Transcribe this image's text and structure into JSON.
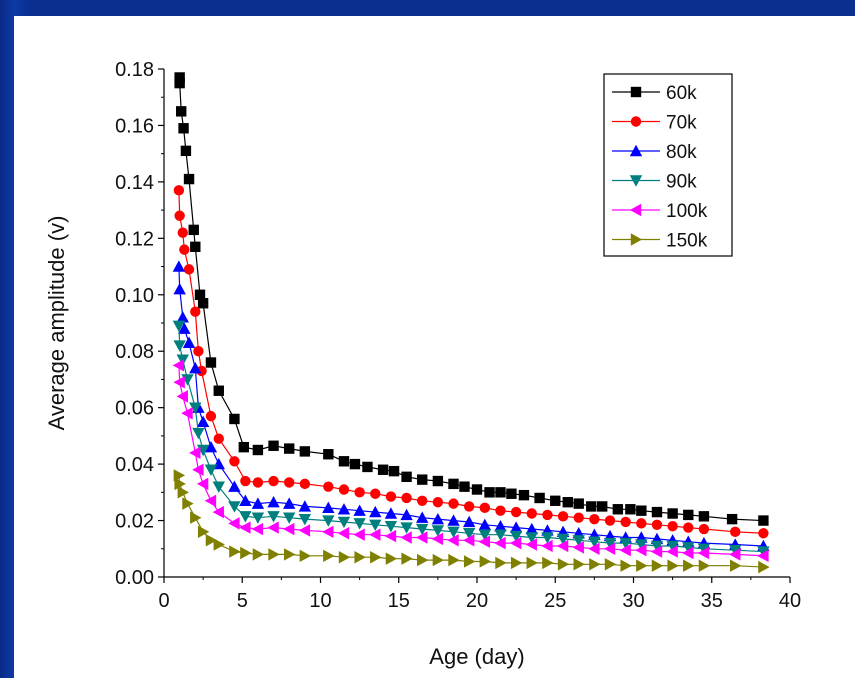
{
  "chart_data": {
    "type": "line",
    "xlabel": "Age (day)",
    "ylabel": "Average amplitude (v)",
    "xlim": [
      0,
      40
    ],
    "ylim": [
      0,
      0.18
    ],
    "xticks": [
      0,
      5,
      10,
      15,
      20,
      25,
      30,
      35,
      40
    ],
    "yticks": [
      0.0,
      0.02,
      0.04,
      0.06,
      0.08,
      0.1,
      0.12,
      0.14,
      0.16,
      0.18
    ],
    "grid": false,
    "legend_position": "top-right",
    "series": [
      {
        "name": "60k",
        "color": "#000000",
        "marker": "square",
        "points": [
          [
            1,
            0.177
          ],
          [
            1.0,
            0.175
          ],
          [
            1.1,
            0.165
          ],
          [
            1.25,
            0.159
          ],
          [
            1.4,
            0.151
          ],
          [
            1.6,
            0.141
          ],
          [
            1.9,
            0.123
          ],
          [
            2.0,
            0.117
          ],
          [
            2.3,
            0.1
          ],
          [
            2.5,
            0.097
          ],
          [
            3.0,
            0.076
          ],
          [
            3.5,
            0.066
          ],
          [
            4.5,
            0.056
          ],
          [
            5.1,
            0.046
          ],
          [
            6.0,
            0.045
          ],
          [
            7.0,
            0.0465
          ],
          [
            8.0,
            0.0455
          ],
          [
            9.0,
            0.0445
          ],
          [
            10.5,
            0.0435
          ],
          [
            11.5,
            0.041
          ],
          [
            12.2,
            0.04
          ],
          [
            13.0,
            0.039
          ],
          [
            14.0,
            0.038
          ],
          [
            14.7,
            0.0375
          ],
          [
            15.5,
            0.0355
          ],
          [
            16.5,
            0.0345
          ],
          [
            17.5,
            0.034
          ],
          [
            18.5,
            0.033
          ],
          [
            19.2,
            0.032
          ],
          [
            20.0,
            0.031
          ],
          [
            20.8,
            0.03
          ],
          [
            21.5,
            0.03
          ],
          [
            22.2,
            0.0295
          ],
          [
            23.0,
            0.029
          ],
          [
            24.0,
            0.028
          ],
          [
            25.0,
            0.027
          ],
          [
            25.8,
            0.0265
          ],
          [
            26.5,
            0.026
          ],
          [
            27.3,
            0.025
          ],
          [
            28.0,
            0.025
          ],
          [
            29.0,
            0.024
          ],
          [
            29.8,
            0.024
          ],
          [
            30.5,
            0.0235
          ],
          [
            31.5,
            0.023
          ],
          [
            32.5,
            0.0225
          ],
          [
            33.5,
            0.022
          ],
          [
            34.5,
            0.0215
          ],
          [
            36.3,
            0.0205
          ],
          [
            38.3,
            0.02
          ]
        ]
      },
      {
        "name": "70k",
        "color": "#ff0000",
        "marker": "circle",
        "points": [
          [
            0.95,
            0.137
          ],
          [
            1.0,
            0.128
          ],
          [
            1.2,
            0.122
          ],
          [
            1.3,
            0.116
          ],
          [
            1.6,
            0.109
          ],
          [
            2.0,
            0.094
          ],
          [
            2.2,
            0.08
          ],
          [
            2.4,
            0.073
          ],
          [
            3.0,
            0.057
          ],
          [
            3.5,
            0.049
          ],
          [
            4.5,
            0.041
          ],
          [
            5.2,
            0.034
          ],
          [
            6.0,
            0.0335
          ],
          [
            7.0,
            0.034
          ],
          [
            8.0,
            0.0335
          ],
          [
            9.0,
            0.033
          ],
          [
            10.5,
            0.032
          ],
          [
            11.5,
            0.031
          ],
          [
            12.5,
            0.03
          ],
          [
            13.5,
            0.0295
          ],
          [
            14.5,
            0.0285
          ],
          [
            15.5,
            0.028
          ],
          [
            16.5,
            0.027
          ],
          [
            17.5,
            0.0265
          ],
          [
            18.5,
            0.026
          ],
          [
            19.5,
            0.025
          ],
          [
            20.5,
            0.0245
          ],
          [
            21.5,
            0.0235
          ],
          [
            22.5,
            0.023
          ],
          [
            23.5,
            0.0225
          ],
          [
            24.5,
            0.022
          ],
          [
            25.5,
            0.0215
          ],
          [
            26.5,
            0.021
          ],
          [
            27.5,
            0.0205
          ],
          [
            28.5,
            0.02
          ],
          [
            29.5,
            0.0195
          ],
          [
            30.5,
            0.019
          ],
          [
            31.5,
            0.0185
          ],
          [
            32.5,
            0.018
          ],
          [
            33.5,
            0.0175
          ],
          [
            34.5,
            0.017
          ],
          [
            36.5,
            0.016
          ],
          [
            38.3,
            0.0155
          ]
        ]
      },
      {
        "name": "80k",
        "color": "#0000ff",
        "marker": "triangle-up",
        "points": [
          [
            0.95,
            0.11
          ],
          [
            1.0,
            0.102
          ],
          [
            1.2,
            0.092
          ],
          [
            1.3,
            0.088
          ],
          [
            1.6,
            0.083
          ],
          [
            2.0,
            0.074
          ],
          [
            2.2,
            0.06
          ],
          [
            2.5,
            0.055
          ],
          [
            3.0,
            0.046
          ],
          [
            3.5,
            0.04
          ],
          [
            4.5,
            0.032
          ],
          [
            5.2,
            0.027
          ],
          [
            6.0,
            0.026
          ],
          [
            7.0,
            0.0265
          ],
          [
            8.0,
            0.026
          ],
          [
            9.0,
            0.025
          ],
          [
            10.5,
            0.0245
          ],
          [
            11.5,
            0.024
          ],
          [
            12.5,
            0.0235
          ],
          [
            13.5,
            0.023
          ],
          [
            14.5,
            0.0225
          ],
          [
            15.5,
            0.022
          ],
          [
            16.5,
            0.021
          ],
          [
            17.5,
            0.0205
          ],
          [
            18.5,
            0.02
          ],
          [
            19.5,
            0.0195
          ],
          [
            20.5,
            0.0185
          ],
          [
            21.5,
            0.018
          ],
          [
            22.5,
            0.0175
          ],
          [
            23.5,
            0.017
          ],
          [
            24.5,
            0.0165
          ],
          [
            25.5,
            0.016
          ],
          [
            26.5,
            0.0155
          ],
          [
            27.5,
            0.015
          ],
          [
            28.5,
            0.0145
          ],
          [
            29.5,
            0.014
          ],
          [
            30.5,
            0.014
          ],
          [
            31.5,
            0.0135
          ],
          [
            32.5,
            0.013
          ],
          [
            33.5,
            0.0125
          ],
          [
            34.5,
            0.012
          ],
          [
            36.5,
            0.0115
          ],
          [
            38.3,
            0.011
          ]
        ]
      },
      {
        "name": "90k",
        "color": "#007f7f",
        "marker": "triangle-down",
        "points": [
          [
            0.95,
            0.089
          ],
          [
            1.0,
            0.082
          ],
          [
            1.2,
            0.077
          ],
          [
            1.5,
            0.07
          ],
          [
            2.0,
            0.06
          ],
          [
            2.2,
            0.051
          ],
          [
            2.5,
            0.045
          ],
          [
            3.0,
            0.038
          ],
          [
            3.5,
            0.032
          ],
          [
            4.5,
            0.025
          ],
          [
            5.2,
            0.0215
          ],
          [
            6.0,
            0.021
          ],
          [
            7.0,
            0.0215
          ],
          [
            8.0,
            0.021
          ],
          [
            9.0,
            0.0205
          ],
          [
            10.5,
            0.02
          ],
          [
            11.5,
            0.0195
          ],
          [
            12.5,
            0.019
          ],
          [
            13.5,
            0.0185
          ],
          [
            14.5,
            0.018
          ],
          [
            15.5,
            0.0175
          ],
          [
            16.5,
            0.017
          ],
          [
            17.5,
            0.0165
          ],
          [
            18.5,
            0.016
          ],
          [
            19.5,
            0.0155
          ],
          [
            20.5,
            0.015
          ],
          [
            21.5,
            0.015
          ],
          [
            22.5,
            0.0145
          ],
          [
            23.5,
            0.014
          ],
          [
            24.5,
            0.014
          ],
          [
            25.5,
            0.0135
          ],
          [
            26.5,
            0.013
          ],
          [
            27.5,
            0.0125
          ],
          [
            28.5,
            0.012
          ],
          [
            29.5,
            0.012
          ],
          [
            30.5,
            0.0115
          ],
          [
            31.5,
            0.011
          ],
          [
            32.5,
            0.011
          ],
          [
            33.5,
            0.0105
          ],
          [
            34.5,
            0.01
          ],
          [
            36.5,
            0.0095
          ],
          [
            38.3,
            0.009
          ]
        ]
      },
      {
        "name": "100k",
        "color": "#ff00ff",
        "marker": "triangle-left",
        "points": [
          [
            0.95,
            0.075
          ],
          [
            1.0,
            0.069
          ],
          [
            1.2,
            0.064
          ],
          [
            1.5,
            0.058
          ],
          [
            2.0,
            0.044
          ],
          [
            2.2,
            0.038
          ],
          [
            2.5,
            0.033
          ],
          [
            3.0,
            0.027
          ],
          [
            3.5,
            0.023
          ],
          [
            4.5,
            0.019
          ],
          [
            5.2,
            0.0175
          ],
          [
            6.0,
            0.017
          ],
          [
            7.0,
            0.0175
          ],
          [
            8.0,
            0.017
          ],
          [
            9.0,
            0.0165
          ],
          [
            10.5,
            0.016
          ],
          [
            11.5,
            0.0155
          ],
          [
            12.5,
            0.015
          ],
          [
            13.5,
            0.015
          ],
          [
            14.5,
            0.0145
          ],
          [
            15.5,
            0.014
          ],
          [
            16.5,
            0.014
          ],
          [
            17.5,
            0.0135
          ],
          [
            18.5,
            0.013
          ],
          [
            19.5,
            0.013
          ],
          [
            20.5,
            0.0125
          ],
          [
            21.5,
            0.012
          ],
          [
            22.5,
            0.012
          ],
          [
            23.5,
            0.0115
          ],
          [
            24.5,
            0.011
          ],
          [
            25.5,
            0.011
          ],
          [
            26.5,
            0.0105
          ],
          [
            27.5,
            0.01
          ],
          [
            28.5,
            0.01
          ],
          [
            29.5,
            0.0095
          ],
          [
            30.5,
            0.0095
          ],
          [
            31.5,
            0.009
          ],
          [
            32.5,
            0.009
          ],
          [
            33.5,
            0.0085
          ],
          [
            34.5,
            0.0085
          ],
          [
            36.5,
            0.008
          ],
          [
            38.3,
            0.0075
          ]
        ]
      },
      {
        "name": "150k",
        "color": "#7f7f00",
        "marker": "triangle-right",
        "points": [
          [
            0.95,
            0.036
          ],
          [
            1.0,
            0.033
          ],
          [
            1.2,
            0.03
          ],
          [
            1.5,
            0.026
          ],
          [
            2.0,
            0.021
          ],
          [
            2.5,
            0.016
          ],
          [
            3.0,
            0.013
          ],
          [
            3.5,
            0.0115
          ],
          [
            4.5,
            0.009
          ],
          [
            5.2,
            0.0085
          ],
          [
            6.0,
            0.008
          ],
          [
            7.0,
            0.008
          ],
          [
            8.0,
            0.008
          ],
          [
            9.0,
            0.0075
          ],
          [
            10.5,
            0.0075
          ],
          [
            11.5,
            0.007
          ],
          [
            12.5,
            0.007
          ],
          [
            13.5,
            0.007
          ],
          [
            14.5,
            0.0065
          ],
          [
            15.5,
            0.0065
          ],
          [
            16.5,
            0.006
          ],
          [
            17.5,
            0.006
          ],
          [
            18.5,
            0.006
          ],
          [
            19.5,
            0.0055
          ],
          [
            20.5,
            0.0055
          ],
          [
            21.5,
            0.005
          ],
          [
            22.5,
            0.005
          ],
          [
            23.5,
            0.005
          ],
          [
            24.5,
            0.005
          ],
          [
            25.5,
            0.0045
          ],
          [
            26.5,
            0.0045
          ],
          [
            27.5,
            0.0045
          ],
          [
            28.5,
            0.0045
          ],
          [
            29.5,
            0.004
          ],
          [
            30.5,
            0.004
          ],
          [
            31.5,
            0.004
          ],
          [
            32.5,
            0.004
          ],
          [
            33.5,
            0.004
          ],
          [
            34.5,
            0.004
          ],
          [
            36.5,
            0.004
          ],
          [
            38.3,
            0.0035
          ]
        ]
      }
    ]
  }
}
